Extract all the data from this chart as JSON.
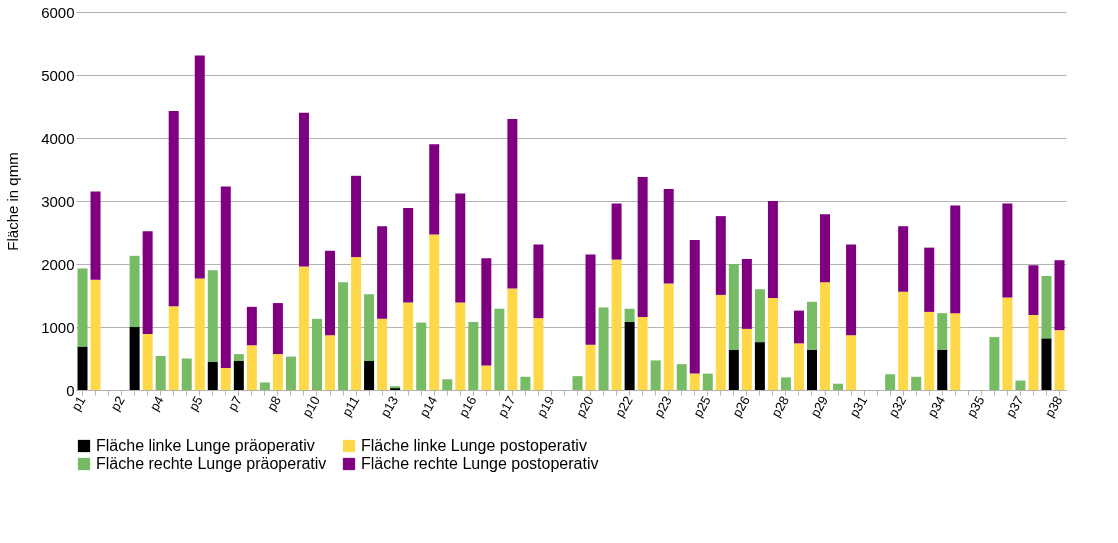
{
  "chart_data": {
    "type": "bar",
    "stacked": true,
    "ylabel": "Fläche in qmm",
    "categories": [
      "p1",
      null,
      null,
      "p2",
      null,
      null,
      "p4",
      null,
      null,
      "p5",
      null,
      null,
      "p7",
      null,
      null,
      "p8",
      null,
      null,
      "p10",
      null,
      null,
      "p11",
      null,
      null,
      "p13",
      null,
      null,
      "p14",
      null,
      null,
      "p16",
      null,
      null,
      "p17",
      null,
      null,
      "p19",
      null,
      null,
      "p20",
      null,
      null,
      "p22",
      null,
      null,
      "p23",
      null,
      null,
      "p25",
      null,
      null,
      "p26",
      null,
      null,
      "p28",
      null,
      null,
      "p29",
      null,
      null,
      "p31",
      null,
      null,
      "p32",
      null,
      null,
      "p34",
      null,
      null,
      "p35",
      null,
      null,
      "p37",
      null,
      null,
      "p38"
    ],
    "series": [
      {
        "name": "Fläche linke Lunge präoperativ",
        "color": "#000000",
        "values": [
          690,
          null,
          null,
          null,
          1000,
          null,
          null,
          null,
          null,
          null,
          450,
          null,
          460,
          null,
          null,
          null,
          null,
          null,
          null,
          null,
          null,
          null,
          460,
          null,
          30,
          null,
          null,
          null,
          null,
          null,
          null,
          null,
          null,
          null,
          null,
          null,
          null,
          null,
          null,
          null,
          null,
          null,
          1080,
          null,
          null,
          null,
          null,
          null,
          null,
          null,
          640,
          null,
          760,
          null,
          null,
          null,
          640,
          null,
          null,
          null,
          null,
          null,
          null,
          null,
          null,
          null,
          640,
          null,
          null,
          null,
          null,
          null,
          null,
          null,
          820,
          null
        ]
      },
      {
        "name": "Fläche linke Lunge postoperativ",
        "color": "#ffd84a",
        "values": [
          null,
          1750,
          null,
          null,
          null,
          890,
          null,
          1330,
          null,
          1770,
          null,
          350,
          null,
          710,
          null,
          570,
          null,
          1960,
          null,
          870,
          null,
          2110,
          null,
          1130,
          null,
          1390,
          null,
          2470,
          null,
          1390,
          null,
          390,
          null,
          1610,
          null,
          1140,
          null,
          null,
          null,
          720,
          null,
          2070,
          null,
          1160,
          null,
          1690,
          null,
          260,
          null,
          1510,
          null,
          970,
          null,
          1460,
          null,
          740,
          null,
          1710,
          null,
          870,
          null,
          null,
          null,
          1560,
          null,
          1240,
          null,
          1220,
          null,
          null,
          null,
          1470,
          null,
          1190,
          null,
          950
        ]
      },
      {
        "name": "Fläche rechte Lunge präoperativ",
        "color": "#77bc65",
        "values": [
          1240,
          null,
          null,
          null,
          1130,
          null,
          540,
          null,
          500,
          null,
          1450,
          null,
          110,
          null,
          120,
          null,
          530,
          null,
          1130,
          null,
          1710,
          null,
          1060,
          null,
          30,
          null,
          1070,
          null,
          170,
          null,
          1080,
          null,
          1290,
          null,
          210,
          null,
          null,
          null,
          220,
          null,
          1310,
          null,
          210,
          null,
          470,
          null,
          410,
          null,
          260,
          null,
          1360,
          null,
          840,
          null,
          200,
          null,
          760,
          null,
          100,
          null,
          null,
          null,
          250,
          null,
          210,
          null,
          580,
          null,
          null,
          null,
          840,
          null,
          150,
          null,
          990,
          null
        ]
      },
      {
        "name": "Fläche rechte Lunge postoperativ",
        "color": "#7e0080",
        "values": [
          null,
          1400,
          null,
          null,
          null,
          1630,
          null,
          3100,
          null,
          3540,
          null,
          2880,
          null,
          610,
          null,
          810,
          null,
          2440,
          null,
          1340,
          null,
          1290,
          null,
          1470,
          null,
          1500,
          null,
          1430,
          null,
          1730,
          null,
          1700,
          null,
          2690,
          null,
          1170,
          null,
          null,
          null,
          1430,
          null,
          890,
          null,
          2220,
          null,
          1500,
          null,
          2120,
          null,
          1250,
          null,
          1110,
          null,
          1540,
          null,
          520,
          null,
          1080,
          null,
          1440,
          null,
          null,
          null,
          1040,
          null,
          1020,
          null,
          1710,
          null,
          null,
          null,
          1490,
          null,
          790,
          null,
          1110
        ]
      }
    ],
    "ylim": [
      0,
      6000
    ],
    "yticks": [
      0,
      1000,
      2000,
      3000,
      4000,
      5000,
      6000
    ],
    "grid": "y",
    "legend": "bottom"
  }
}
